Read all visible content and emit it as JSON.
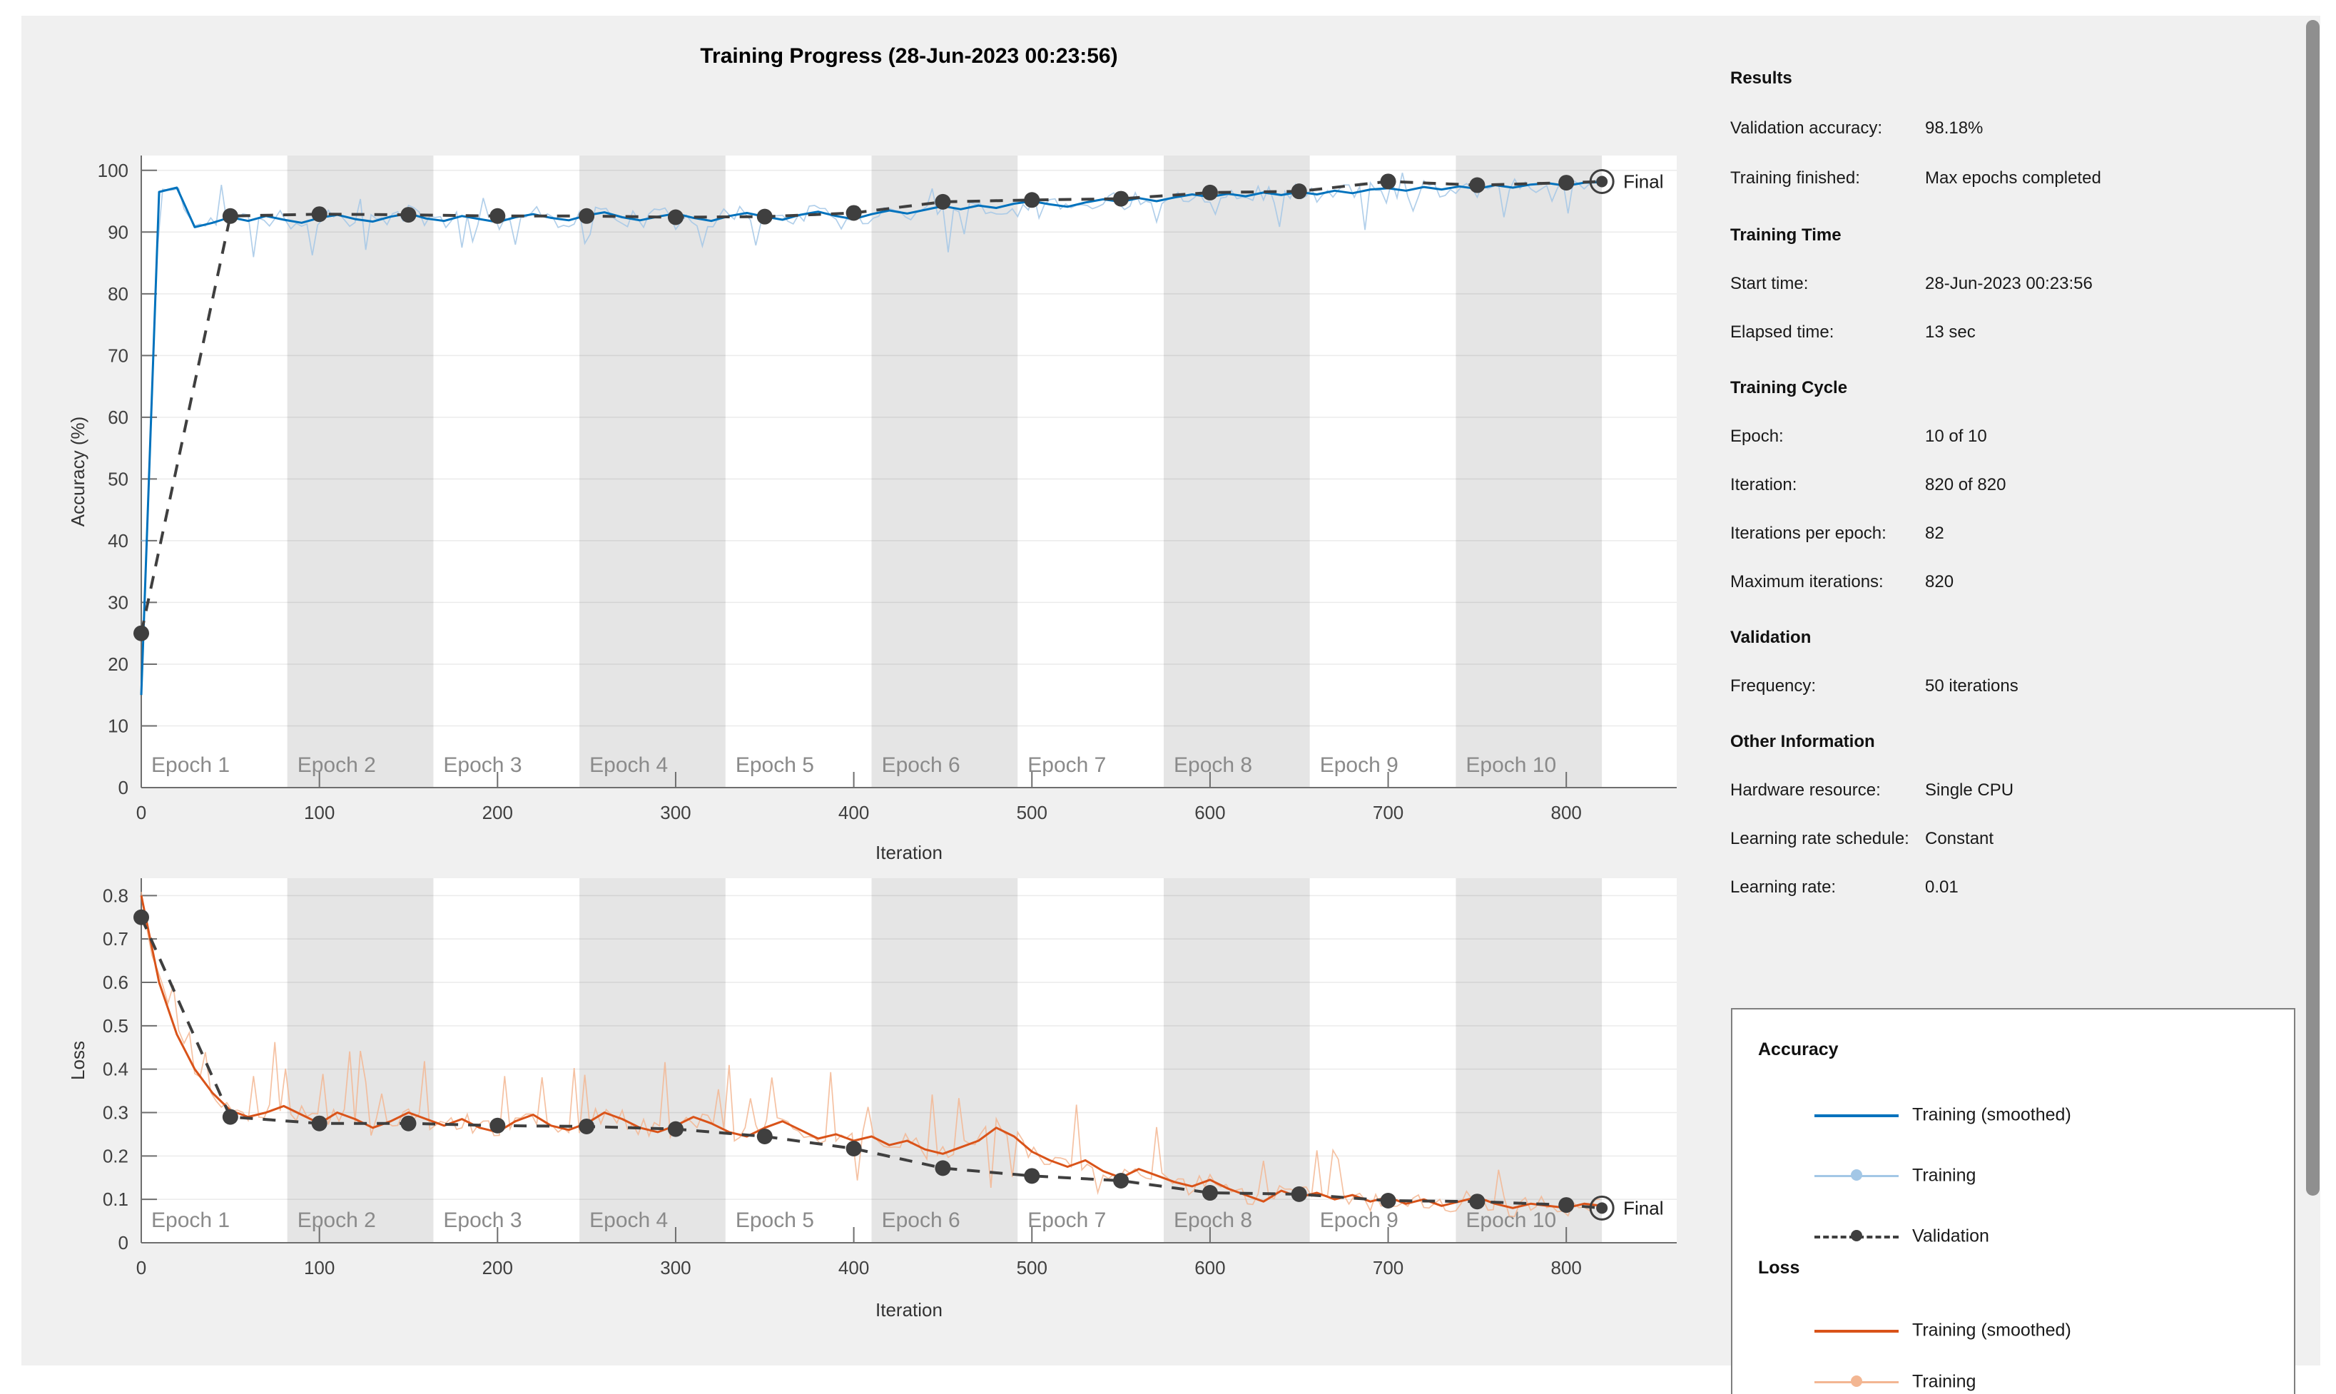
{
  "window": {
    "title": "Training Progress (28-Jun-2023 00:23:56)"
  },
  "colors": {
    "accuracy_smoothed": "#0072BD",
    "accuracy_raw": "#a3c7e6",
    "loss_smoothed": "#D95319",
    "loss_raw": "#f3b692",
    "validation": "#3f3f3f",
    "epoch_band": "#e5e5e5",
    "epoch_text": "#8a8a8a",
    "axis": "#6e6e6e",
    "tick_text": "#404040",
    "grid": "rgba(0,0,0,0.08)"
  },
  "info": {
    "sections": [
      {
        "header": "Results",
        "rows": [
          {
            "label": "Validation accuracy:",
            "value": "98.18%"
          },
          {
            "label": "Training finished:",
            "value": "Max epochs completed"
          }
        ]
      },
      {
        "header": "Training Time",
        "rows": [
          {
            "label": "Start time:",
            "value": "28-Jun-2023 00:23:56"
          },
          {
            "label": "Elapsed time:",
            "value": "13 sec"
          }
        ]
      },
      {
        "header": "Training Cycle",
        "rows": [
          {
            "label": "Epoch:",
            "value": "10 of 10"
          },
          {
            "label": "Iteration:",
            "value": "820 of 820"
          },
          {
            "label": "Iterations per epoch:",
            "value": "82"
          },
          {
            "label": "Maximum iterations:",
            "value": "820"
          }
        ]
      },
      {
        "header": "Validation",
        "rows": [
          {
            "label": "Frequency:",
            "value": "50 iterations"
          }
        ]
      },
      {
        "header": "Other Information",
        "rows": [
          {
            "label": "Hardware resource:",
            "value": "Single CPU"
          },
          {
            "label": "Learning rate schedule:",
            "value": "Constant"
          },
          {
            "label": "Learning rate:",
            "value": "0.01"
          }
        ]
      }
    ]
  },
  "legend": {
    "groups": [
      {
        "title": "Accuracy",
        "items": [
          {
            "label": "Training (smoothed)"
          },
          {
            "label": "Training"
          },
          {
            "label": "Validation"
          }
        ]
      },
      {
        "title": "Loss",
        "items": [
          {
            "label": "Training (smoothed)"
          },
          {
            "label": "Training"
          }
        ]
      }
    ]
  },
  "chart_data": [
    {
      "type": "line",
      "title": "Accuracy",
      "xlabel": "Iteration",
      "ylabel": "Accuracy (%)",
      "xlim": [
        0,
        862
      ],
      "ylim": [
        0,
        102.4
      ],
      "xticks": [
        0,
        100,
        200,
        300,
        400,
        500,
        600,
        700,
        800
      ],
      "yticks": [
        0,
        10,
        20,
        30,
        40,
        50,
        60,
        70,
        80,
        90,
        100
      ],
      "grid": "horizontal",
      "epochs": {
        "count": 10,
        "iterations_per_epoch": 82,
        "labels": [
          "Epoch 1",
          "Epoch 2",
          "Epoch 3",
          "Epoch 4",
          "Epoch 5",
          "Epoch 6",
          "Epoch 7",
          "Epoch 8",
          "Epoch 9",
          "Epoch 10"
        ]
      },
      "series": [
        {
          "name": "Training (smoothed)",
          "x_step": 10,
          "values": [
            15,
            96.5,
            97.2,
            90.8,
            91.5,
            92.4,
            91.8,
            92.6,
            92.0,
            91.5,
            92.3,
            92.8,
            92.1,
            91.7,
            92.5,
            93.0,
            92.2,
            91.8,
            92.6,
            92.1,
            91.6,
            92.4,
            92.9,
            92.3,
            91.9,
            92.7,
            93.2,
            92.4,
            91.9,
            92.5,
            93.0,
            92.3,
            91.8,
            92.6,
            93.1,
            92.5,
            92.0,
            92.8,
            93.3,
            92.6,
            92.1,
            92.9,
            93.5,
            93.0,
            93.6,
            94.2,
            93.7,
            94.3,
            93.9,
            94.6,
            95.0,
            94.5,
            94.1,
            94.8,
            95.3,
            94.9,
            95.5,
            95.0,
            95.6,
            96.1,
            95.7,
            96.2,
            95.8,
            96.4,
            96.0,
            96.5,
            96.1,
            96.7,
            96.3,
            96.9,
            97.1,
            96.7,
            97.3,
            96.9,
            97.4,
            97.0,
            97.6,
            97.2,
            97.7,
            97.9,
            97.5,
            98.0,
            98.1
          ]
        },
        {
          "name": "Training",
          "representation": "smoothed_plus_noise",
          "noise_amplitude": 1.4,
          "spike_amplitude": 6.5,
          "spike_rate": 0.12,
          "spike_down_bias": 0.72,
          "seed": 11,
          "clamp": [
            40,
            99.6
          ]
        },
        {
          "name": "Validation",
          "x": [
            0,
            50,
            100,
            150,
            200,
            250,
            300,
            350,
            400,
            450,
            500,
            550,
            600,
            650,
            700,
            750,
            800,
            820
          ],
          "y": [
            25,
            92.6,
            92.9,
            92.8,
            92.6,
            92.6,
            92.4,
            92.5,
            93.1,
            94.9,
            95.2,
            95.4,
            96.4,
            96.6,
            98.2,
            97.6,
            98.0,
            98.18
          ],
          "final": {
            "x": 820,
            "y": 98.18,
            "label": "Final"
          }
        }
      ]
    },
    {
      "type": "line",
      "title": "Loss",
      "xlabel": "Iteration",
      "ylabel": "Loss",
      "xlim": [
        0,
        862
      ],
      "ylim": [
        0,
        0.84
      ],
      "xticks": [
        0,
        100,
        200,
        300,
        400,
        500,
        600,
        700,
        800
      ],
      "yticks": [
        0,
        0.1,
        0.2,
        0.3,
        0.4,
        0.5,
        0.6,
        0.7,
        0.8
      ],
      "grid": "horizontal",
      "epochs": {
        "count": 10,
        "iterations_per_epoch": 82,
        "labels": [
          "Epoch 1",
          "Epoch 2",
          "Epoch 3",
          "Epoch 4",
          "Epoch 5",
          "Epoch 6",
          "Epoch 7",
          "Epoch 8",
          "Epoch 9",
          "Epoch 10"
        ]
      },
      "series": [
        {
          "name": "Training (smoothed)",
          "x_step": 10,
          "values": [
            0.8,
            0.6,
            0.48,
            0.4,
            0.345,
            0.305,
            0.29,
            0.3,
            0.315,
            0.295,
            0.275,
            0.3,
            0.285,
            0.265,
            0.28,
            0.3,
            0.285,
            0.27,
            0.285,
            0.265,
            0.255,
            0.28,
            0.295,
            0.27,
            0.26,
            0.275,
            0.3,
            0.285,
            0.265,
            0.255,
            0.27,
            0.29,
            0.275,
            0.255,
            0.245,
            0.265,
            0.28,
            0.26,
            0.24,
            0.25,
            0.235,
            0.245,
            0.225,
            0.235,
            0.215,
            0.205,
            0.22,
            0.235,
            0.265,
            0.245,
            0.21,
            0.19,
            0.175,
            0.19,
            0.165,
            0.15,
            0.17,
            0.155,
            0.14,
            0.13,
            0.145,
            0.125,
            0.11,
            0.095,
            0.12,
            0.105,
            0.115,
            0.1,
            0.11,
            0.095,
            0.105,
            0.09,
            0.1,
            0.085,
            0.095,
            0.105,
            0.09,
            0.08,
            0.09,
            0.085,
            0.08,
            0.09,
            0.085
          ]
        },
        {
          "name": "Training",
          "representation": "smoothed_plus_noise",
          "noise_amplitude": 0.022,
          "spike_amplitude": 0.16,
          "spike_rate": 0.12,
          "spike_down_bias": 0.22,
          "seed": 5,
          "clamp": [
            0.02,
            0.83
          ]
        },
        {
          "name": "Validation",
          "x": [
            0,
            50,
            100,
            150,
            200,
            250,
            300,
            350,
            400,
            450,
            500,
            550,
            600,
            650,
            700,
            750,
            800,
            820
          ],
          "y": [
            0.75,
            0.29,
            0.275,
            0.275,
            0.27,
            0.268,
            0.262,
            0.245,
            0.217,
            0.172,
            0.154,
            0.143,
            0.115,
            0.112,
            0.097,
            0.095,
            0.087,
            0.08
          ],
          "final": {
            "x": 820,
            "y": 0.08,
            "label": "Final"
          }
        }
      ]
    }
  ]
}
